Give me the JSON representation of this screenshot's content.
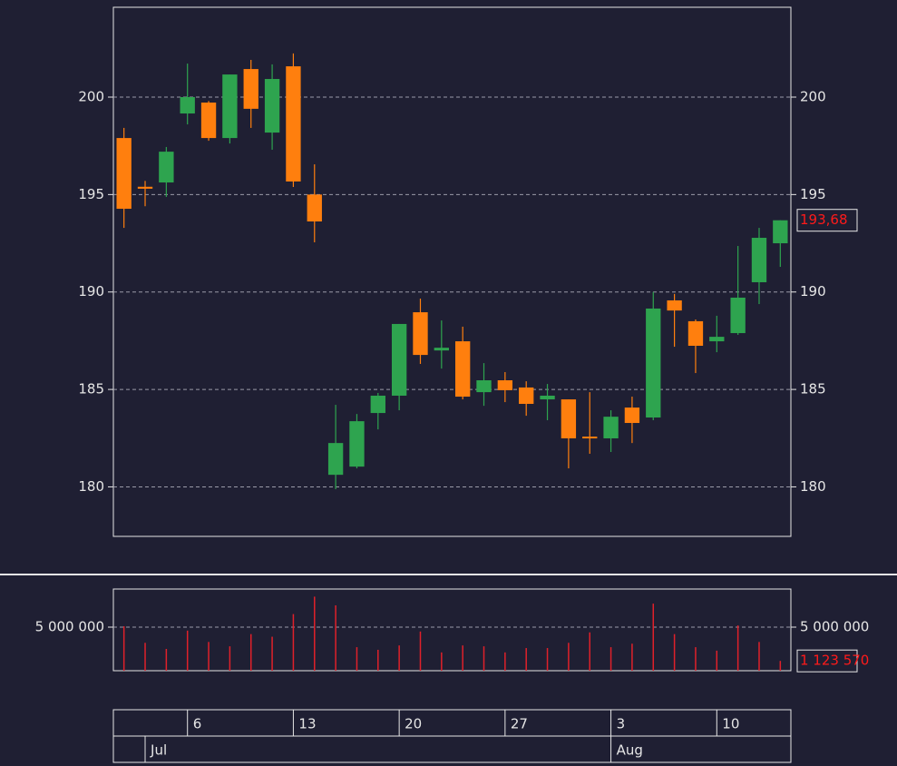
{
  "chart_data": [
    {
      "type": "candlestick",
      "categories": [
        null,
        null,
        null,
        "6",
        null,
        null,
        null,
        null,
        "13",
        null,
        null,
        null,
        null,
        "20",
        null,
        null,
        null,
        null,
        "27",
        null,
        null,
        null,
        null,
        "3",
        null,
        null,
        null,
        null,
        "10",
        null,
        null,
        null
      ],
      "months": [
        null,
        "Jul",
        null,
        null,
        null,
        null,
        null,
        null,
        null,
        null,
        null,
        null,
        null,
        null,
        null,
        null,
        null,
        null,
        null,
        null,
        null,
        null,
        null,
        "Aug",
        null,
        null,
        null,
        null,
        null,
        null,
        null,
        null
      ],
      "open": [
        197.9,
        195.4,
        195.62,
        199.16,
        199.72,
        197.9,
        201.44,
        198.18,
        201.58,
        195.0,
        180.62,
        181.04,
        183.79,
        184.68,
        188.96,
        187.0,
        187.47,
        184.86,
        185.47,
        185.1,
        184.49,
        184.49,
        182.58,
        182.49,
        184.07,
        183.56,
        189.57,
        188.5,
        187.47,
        187.89,
        190.5,
        192.5
      ],
      "high": [
        198.42,
        195.7,
        197.44,
        201.72,
        199.8,
        201.16,
        201.91,
        201.68,
        202.24,
        196.55,
        184.21,
        183.74,
        184.82,
        188.36,
        189.66,
        188.54,
        188.22,
        186.35,
        185.89,
        185.42,
        185.28,
        184.49,
        184.86,
        183.93,
        184.63,
        190.0,
        189.9,
        188.59,
        188.78,
        192.36,
        193.29,
        193.68
      ],
      "low": [
        193.29,
        194.4,
        194.88,
        198.6,
        197.76,
        197.62,
        198.42,
        197.3,
        195.39,
        192.55,
        179.88,
        180.95,
        182.95,
        183.93,
        186.31,
        186.07,
        184.49,
        184.16,
        184.35,
        183.65,
        183.42,
        180.95,
        181.7,
        181.79,
        182.25,
        183.42,
        187.19,
        185.84,
        186.91,
        187.8,
        189.38,
        191.29
      ],
      "close": [
        194.27,
        195.3,
        197.2,
        200.0,
        197.9,
        201.16,
        199.4,
        200.93,
        195.67,
        193.62,
        182.25,
        183.37,
        184.68,
        188.36,
        186.77,
        187.14,
        184.63,
        185.47,
        184.96,
        184.26,
        184.68,
        182.49,
        182.49,
        183.6,
        183.28,
        189.15,
        189.05,
        187.24,
        187.7,
        189.71,
        192.78,
        193.68
      ],
      "up_color": "#2ea44f",
      "down_color": "#ff7f0e",
      "ylim": [
        177.46,
        204.61
      ],
      "yticks": [
        180,
        185,
        190,
        195,
        200
      ],
      "grid": true,
      "price_marker": {
        "value": 193.68,
        "label": "193,68"
      }
    },
    {
      "type": "bar",
      "values": [
        5100000,
        3200000,
        2500000,
        4600000,
        3300000,
        2800000,
        4200000,
        3900000,
        6500000,
        8500000,
        7500000,
        2700000,
        2400000,
        2900000,
        4500000,
        2100000,
        2900000,
        2800000,
        2100000,
        2600000,
        2600000,
        3200000,
        4400000,
        2700000,
        3100000,
        7700000,
        4200000,
        2700000,
        2300000,
        5200000,
        3300000,
        1123570
      ],
      "color": "#e0202a",
      "ylim": [
        0,
        9375000
      ],
      "yticks": [
        {
          "value": 5000000,
          "label": "5 000 000"
        }
      ],
      "grid": true,
      "value_marker": {
        "value": 1123570,
        "label": "1 123 570"
      }
    }
  ]
}
